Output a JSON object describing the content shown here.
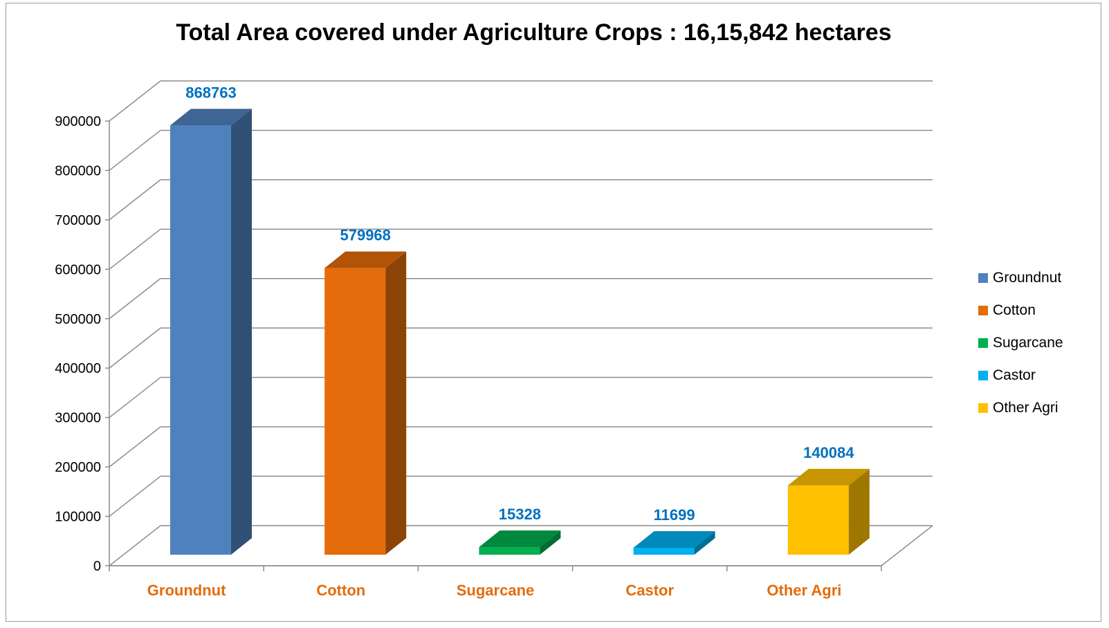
{
  "chart_data": {
    "type": "bar",
    "title": "Total Area covered under Agriculture Crops : 16,15,842 hectares",
    "categories": [
      "Groundnut",
      "Cotton",
      "Sugarcane",
      "Castor",
      "Other Agri"
    ],
    "values": [
      868763,
      579968,
      15328,
      11699,
      140084
    ],
    "data_labels": [
      "868763",
      "579968",
      "15328",
      "11699",
      "140084"
    ],
    "y_ticks": [
      "0",
      "100000",
      "200000",
      "300000",
      "400000",
      "500000",
      "600000",
      "700000",
      "800000",
      "900000"
    ],
    "ylim": [
      0,
      900000
    ],
    "xlabel": "",
    "ylabel": "",
    "grid": true,
    "three_d": true,
    "legend_position": "right",
    "legend": [
      "Groundnut",
      "Cotton",
      "Sugarcane",
      "Castor",
      "Other Agri"
    ],
    "colors": [
      "#4f81bd",
      "#e46c0a",
      "#00b050",
      "#00b0f0",
      "#ffc000"
    ],
    "category_label_color": "#e46c0a",
    "data_label_color": "#0070c0"
  }
}
